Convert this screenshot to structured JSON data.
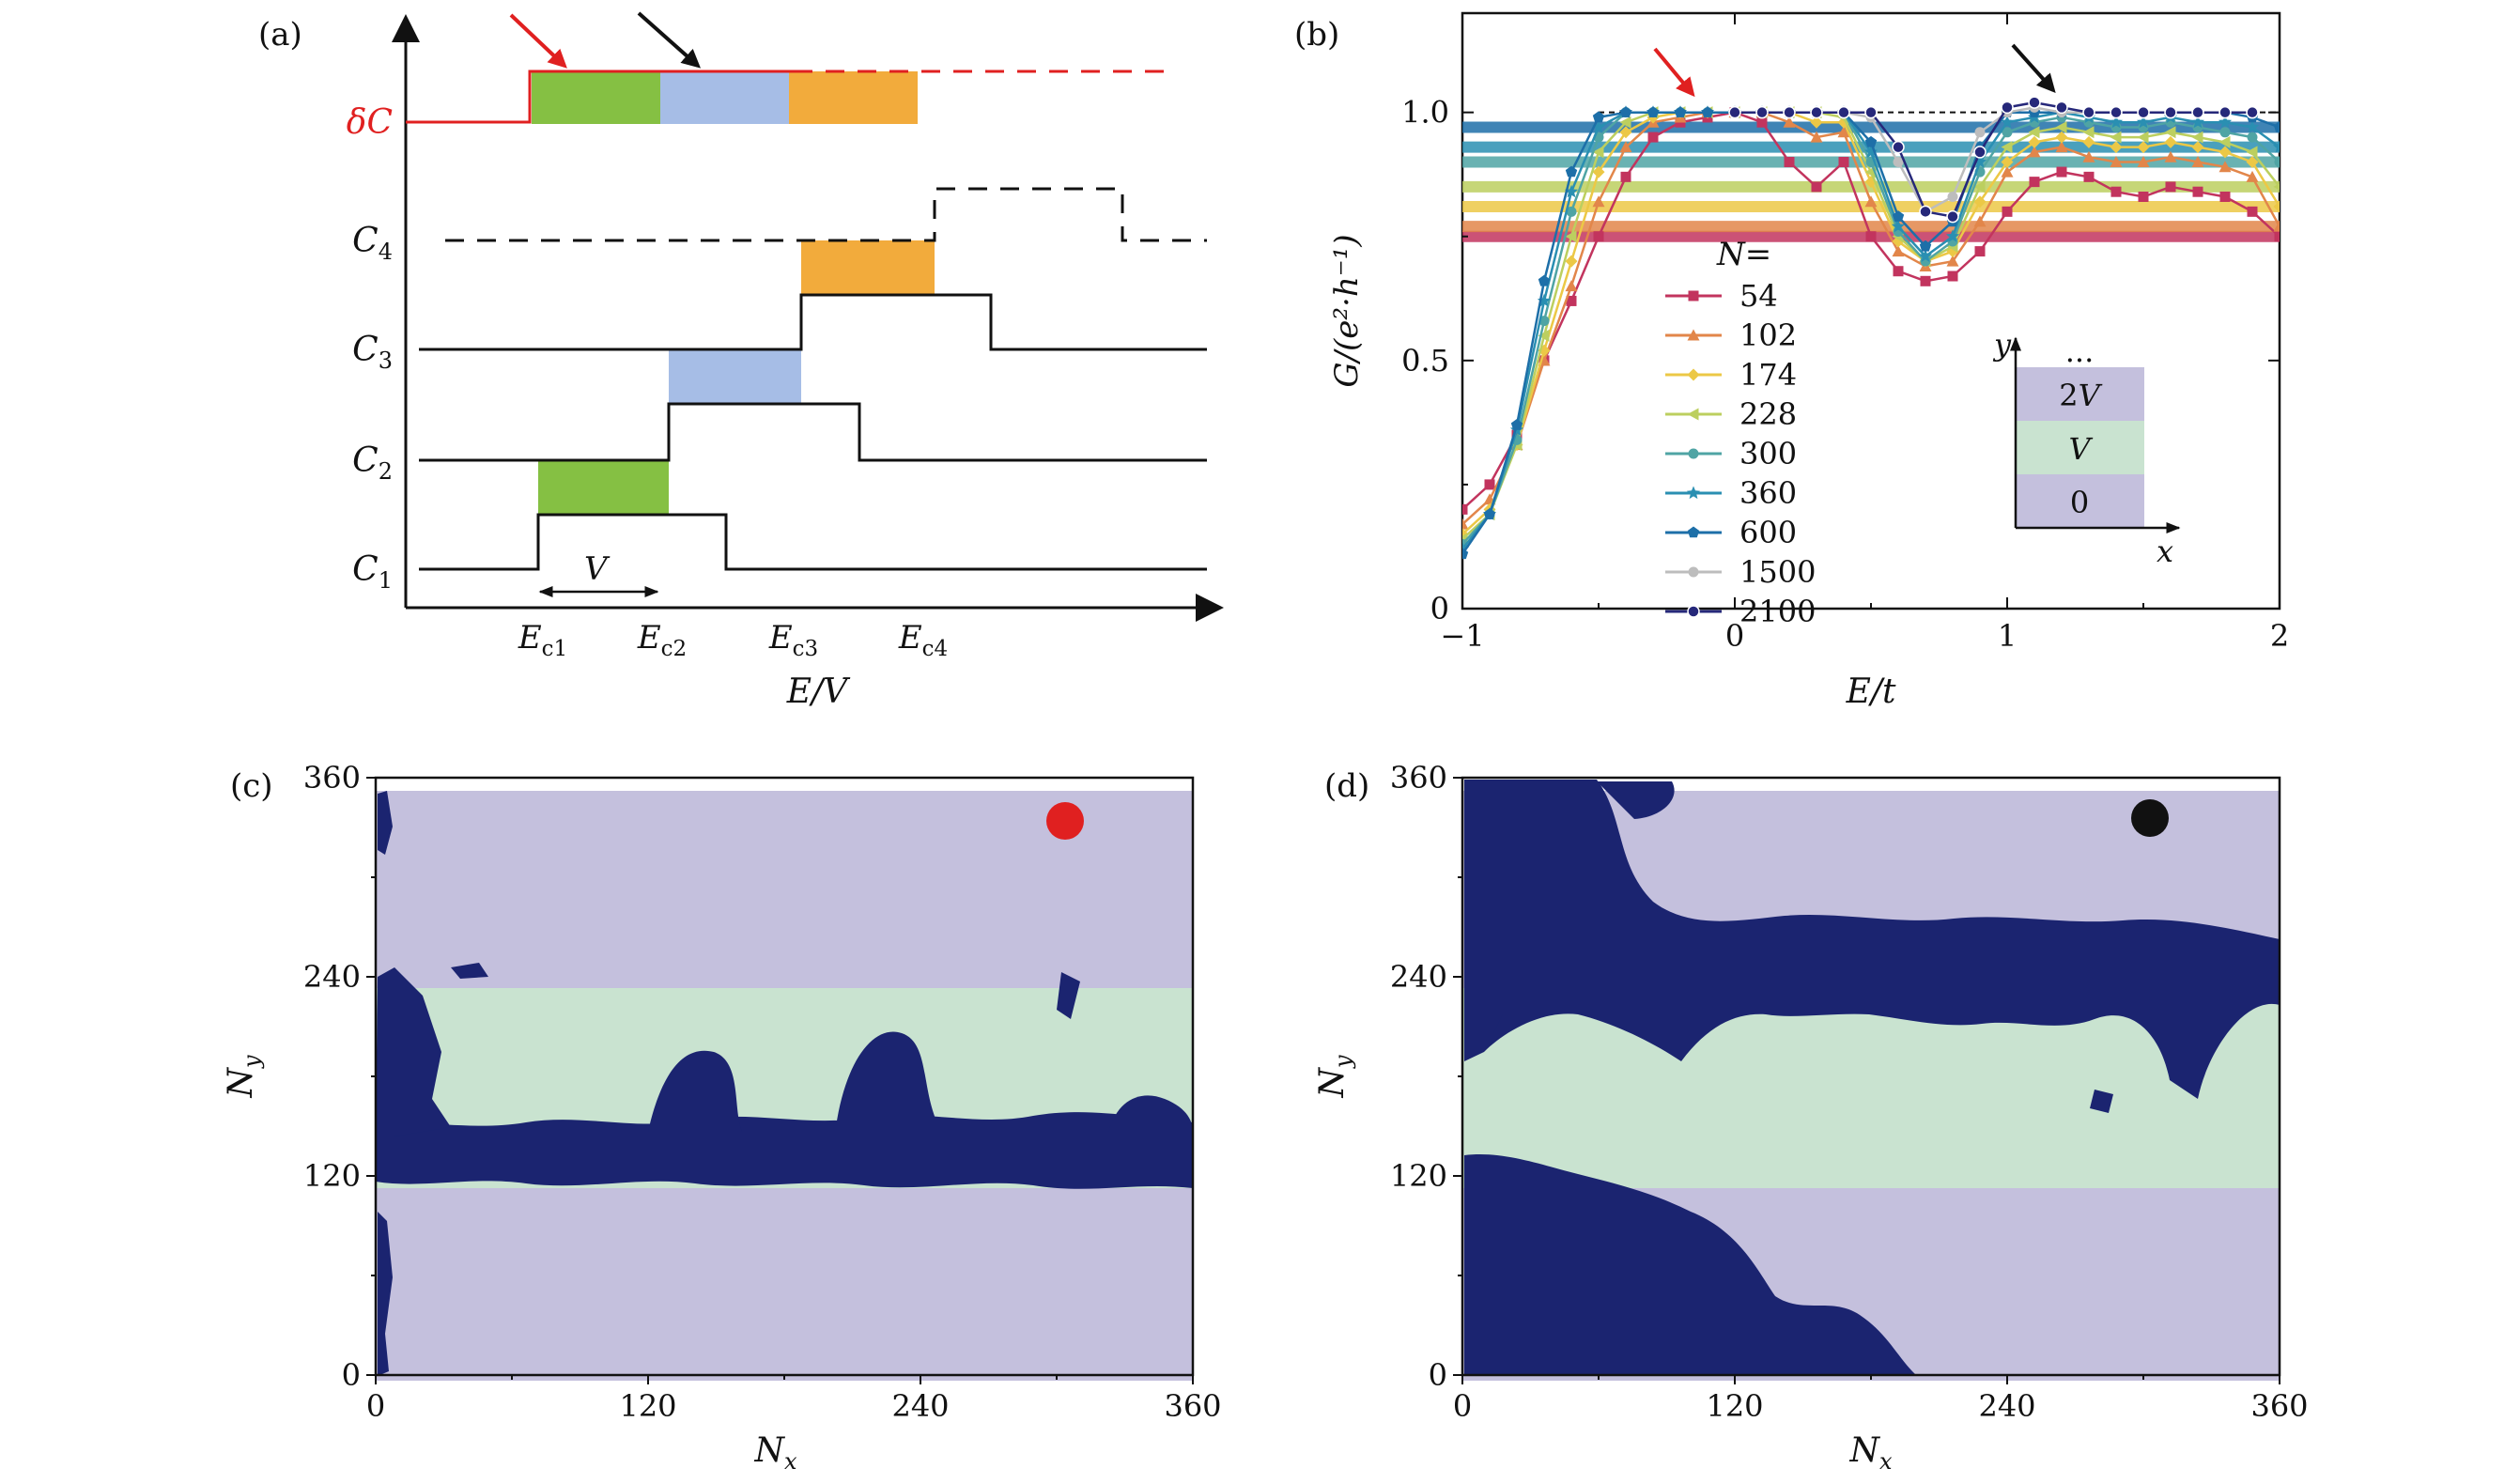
{
  "panel_labels": [
    "(a)",
    "(b)",
    "(c)",
    "(d)"
  ],
  "colors": {
    "red": "#e02020",
    "green": "#85c043",
    "blue": "#a6bde6",
    "orange": "#f2ab3c",
    "purple": "#c4c0dd",
    "mint": "#c9e3d0",
    "navy": "#1b2470",
    "black": "#111111"
  },
  "chart_data": [
    {
      "panel": "(a)",
      "type": "diagram",
      "xlabel": "E/V",
      "row_labels": {
        "dC": "δC",
        "C4": "C4",
        "C3": "C3",
        "C2": "C2",
        "C1": "C1"
      },
      "x_ticks": [
        "Ec1",
        "Ec2",
        "Ec3",
        "Ec4"
      ],
      "width_label": "V",
      "step_fill_colors": [
        "green",
        "blue",
        "orange"
      ],
      "curves": [
        "δC",
        "C4",
        "C3",
        "C2",
        "C1"
      ],
      "arrows": [
        "red",
        "black"
      ]
    },
    {
      "panel": "(b)",
      "type": "line",
      "xlabel": "E/t",
      "ylabel": "G/(e²·h⁻¹)",
      "xlim": [
        -1,
        2
      ],
      "ylim": [
        0,
        1.2
      ],
      "x_ticks": [
        "−1",
        "0",
        "1",
        "2"
      ],
      "y_ticks": [
        "0",
        "0.5",
        "1.0"
      ],
      "legend_title": "N=",
      "legend_location": "center-left",
      "reference_line": 1.0,
      "x": [
        -1.0,
        -0.9,
        -0.8,
        -0.7,
        -0.6,
        -0.5,
        -0.4,
        -0.3,
        -0.2,
        -0.1,
        0.0,
        0.1,
        0.2,
        0.3,
        0.4,
        0.5,
        0.6,
        0.7,
        0.8,
        0.9,
        1.0,
        1.1,
        1.2,
        1.3,
        1.4,
        1.5,
        1.6,
        1.7,
        1.8,
        1.9,
        2.0
      ],
      "series": [
        {
          "name": "54",
          "color": "#c2345e",
          "marker": "square",
          "level": 0.75,
          "values": [
            0.2,
            0.25,
            0.35,
            0.5,
            0.62,
            0.75,
            0.87,
            0.95,
            0.98,
            0.99,
            1.0,
            0.98,
            0.9,
            0.85,
            0.9,
            0.75,
            0.68,
            0.66,
            0.67,
            0.72,
            0.8,
            0.86,
            0.88,
            0.87,
            0.84,
            0.83,
            0.85,
            0.84,
            0.83,
            0.8,
            0.75
          ]
        },
        {
          "name": "102",
          "color": "#e2864a",
          "marker": "triangle",
          "level": 0.77,
          "values": [
            0.17,
            0.22,
            0.33,
            0.5,
            0.65,
            0.82,
            0.93,
            0.98,
            0.99,
            1.0,
            1.0,
            1.0,
            0.98,
            0.95,
            0.96,
            0.82,
            0.72,
            0.69,
            0.7,
            0.78,
            0.88,
            0.92,
            0.93,
            0.91,
            0.9,
            0.9,
            0.91,
            0.9,
            0.89,
            0.87,
            0.77
          ]
        },
        {
          "name": "174",
          "color": "#ecc846",
          "marker": "diamond",
          "level": 0.81,
          "values": [
            0.15,
            0.2,
            0.33,
            0.52,
            0.7,
            0.88,
            0.96,
            0.99,
            1.0,
            1.0,
            1.0,
            1.0,
            1.0,
            0.98,
            0.98,
            0.86,
            0.74,
            0.7,
            0.72,
            0.82,
            0.9,
            0.94,
            0.95,
            0.94,
            0.93,
            0.93,
            0.94,
            0.93,
            0.92,
            0.9,
            0.81
          ]
        },
        {
          "name": "228",
          "color": "#bccf5f",
          "marker": "left-triangle",
          "level": 0.85,
          "values": [
            0.14,
            0.19,
            0.33,
            0.55,
            0.75,
            0.92,
            0.98,
            1.0,
            1.0,
            1.0,
            1.0,
            1.0,
            1.0,
            1.0,
            0.99,
            0.88,
            0.75,
            0.7,
            0.73,
            0.85,
            0.93,
            0.96,
            0.97,
            0.96,
            0.95,
            0.95,
            0.96,
            0.95,
            0.94,
            0.92,
            0.85
          ]
        },
        {
          "name": "300",
          "color": "#4fa4a4",
          "marker": "circle",
          "level": 0.9,
          "values": [
            0.13,
            0.19,
            0.34,
            0.58,
            0.8,
            0.95,
            1.0,
            1.0,
            1.0,
            1.0,
            1.0,
            1.0,
            1.0,
            1.0,
            1.0,
            0.9,
            0.76,
            0.7,
            0.74,
            0.88,
            0.96,
            0.98,
            0.99,
            0.98,
            0.97,
            0.97,
            0.98,
            0.97,
            0.96,
            0.95,
            0.9
          ]
        },
        {
          "name": "360",
          "color": "#2a8fb2",
          "marker": "star",
          "level": 0.93,
          "values": [
            0.12,
            0.19,
            0.36,
            0.62,
            0.84,
            0.97,
            1.0,
            1.0,
            1.0,
            1.0,
            1.0,
            1.0,
            1.0,
            1.0,
            1.0,
            0.92,
            0.77,
            0.71,
            0.75,
            0.9,
            0.98,
            0.99,
            1.0,
            0.99,
            0.98,
            0.98,
            0.99,
            0.98,
            0.98,
            0.97,
            0.93
          ]
        },
        {
          "name": "600",
          "color": "#1d6fa8",
          "marker": "pentagon",
          "level": 0.97,
          "values": [
            0.11,
            0.19,
            0.37,
            0.66,
            0.88,
            0.99,
            1.0,
            1.0,
            1.0,
            1.0,
            1.0,
            1.0,
            1.0,
            1.0,
            1.0,
            0.94,
            0.79,
            0.73,
            0.78,
            0.93,
            1.0,
            1.0,
            1.0,
            1.0,
            1.0,
            1.0,
            1.0,
            1.0,
            1.0,
            0.99,
            0.97
          ]
        },
        {
          "name": "1500",
          "color": "#bdbdbd",
          "marker": "circle",
          "level": null,
          "values": [
            null,
            null,
            null,
            null,
            null,
            null,
            null,
            null,
            null,
            null,
            1.0,
            1.0,
            1.0,
            1.0,
            1.0,
            0.99,
            0.9,
            0.8,
            0.83,
            0.96,
            1.0,
            1.01,
            1.0,
            1.0,
            1.0,
            1.0,
            1.0,
            1.0,
            1.0,
            1.0,
            null
          ]
        },
        {
          "name": "2100",
          "color": "#26287a",
          "marker": "circle-open",
          "level": null,
          "values": [
            null,
            null,
            null,
            null,
            null,
            null,
            null,
            null,
            null,
            null,
            1.0,
            1.0,
            1.0,
            1.0,
            1.0,
            1.0,
            0.93,
            0.8,
            0.79,
            0.92,
            1.01,
            1.02,
            1.01,
            1.0,
            1.0,
            1.0,
            1.0,
            1.0,
            1.0,
            1.0,
            null
          ]
        }
      ],
      "inset": {
        "xlabel": "x",
        "ylabel": "y",
        "bands": [
          "0",
          "V",
          "2V",
          "..."
        ]
      },
      "arrows": [
        "red",
        "black"
      ]
    },
    {
      "panel": "(c)",
      "type": "map",
      "xlabel": "Nx",
      "ylabel": "Ny",
      "xlim": [
        0,
        360
      ],
      "ylim": [
        0,
        360
      ],
      "x_ticks": [
        "0",
        "120",
        "240",
        "360"
      ],
      "y_ticks": [
        "0",
        "120",
        "240",
        "360"
      ],
      "bands": [
        {
          "from": 0,
          "to": 120,
          "color": "purple"
        },
        {
          "from": 120,
          "to": 240,
          "color": "mint"
        },
        {
          "from": 240,
          "to": 360,
          "color": "purple"
        }
      ],
      "marker": {
        "color": "red",
        "x": 305,
        "y": 330
      }
    },
    {
      "panel": "(d)",
      "type": "map",
      "xlabel": "Nx",
      "ylabel": "Ny",
      "xlim": [
        0,
        360
      ],
      "ylim": [
        0,
        360
      ],
      "x_ticks": [
        "0",
        "120",
        "240",
        "360"
      ],
      "y_ticks": [
        "0",
        "120",
        "240",
        "360"
      ],
      "bands": [
        {
          "from": 0,
          "to": 120,
          "color": "purple"
        },
        {
          "from": 120,
          "to": 240,
          "color": "mint"
        },
        {
          "from": 240,
          "to": 360,
          "color": "purple"
        }
      ],
      "marker": {
        "color": "black",
        "x": 305,
        "y": 333
      }
    }
  ]
}
